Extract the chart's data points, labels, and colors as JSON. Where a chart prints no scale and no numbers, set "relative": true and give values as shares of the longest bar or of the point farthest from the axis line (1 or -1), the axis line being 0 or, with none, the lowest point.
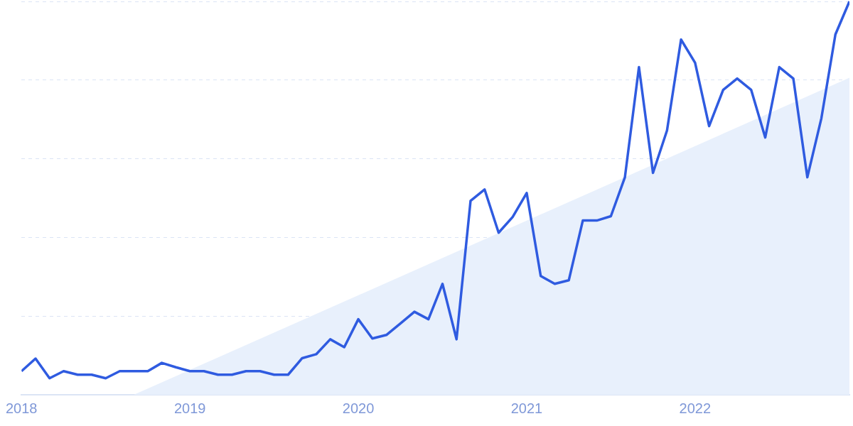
{
  "chart_data": {
    "type": "line",
    "relative": true,
    "grid": "y",
    "marker": "none",
    "line_style": "solid",
    "x": [
      "2018-01",
      "2018-02",
      "2018-03",
      "2018-04",
      "2018-05",
      "2018-06",
      "2018-07",
      "2018-08",
      "2018-09",
      "2018-10",
      "2018-11",
      "2018-12",
      "2019-01",
      "2019-02",
      "2019-03",
      "2019-04",
      "2019-05",
      "2019-06",
      "2019-07",
      "2019-08",
      "2019-09",
      "2019-10",
      "2019-11",
      "2019-12",
      "2020-01",
      "2020-02",
      "2020-03",
      "2020-04",
      "2020-05",
      "2020-06",
      "2020-07",
      "2020-08",
      "2020-09",
      "2020-10",
      "2020-11",
      "2020-12",
      "2021-01",
      "2021-02",
      "2021-03",
      "2021-04",
      "2021-05",
      "2021-06",
      "2021-07",
      "2021-08",
      "2021-09",
      "2021-10",
      "2021-11",
      "2021-12",
      "2022-01",
      "2022-02",
      "2022-03",
      "2022-04",
      "2022-05",
      "2022-06",
      "2022-07",
      "2022-08",
      "2022-09",
      "2022-10",
      "2022-11",
      "2022-12"
    ],
    "xlim": [
      "2018-01",
      "2022-12"
    ],
    "xticks": [
      {
        "value": "2018-01",
        "label": "2018"
      },
      {
        "value": "2019-01",
        "label": "2019"
      },
      {
        "value": "2020-01",
        "label": "2020"
      },
      {
        "value": "2021-01",
        "label": "2021"
      },
      {
        "value": "2022-01",
        "label": "2022"
      }
    ],
    "series": [
      {
        "type": "area",
        "color": "#e8f0fc",
        "x": [
          "2018-09",
          "2022-12"
        ],
        "values": [
          0,
          0.806
        ]
      },
      {
        "color": "#2f5be0",
        "values": [
          0.06,
          0.092,
          0.042,
          0.06,
          0.051,
          0.051,
          0.042,
          0.06,
          0.06,
          0.06,
          0.081,
          0.07,
          0.06,
          0.06,
          0.051,
          0.051,
          0.06,
          0.06,
          0.051,
          0.051,
          0.093,
          0.103,
          0.141,
          0.121,
          0.192,
          0.143,
          0.152,
          0.181,
          0.211,
          0.192,
          0.282,
          0.141,
          0.493,
          0.522,
          0.412,
          0.452,
          0.513,
          0.302,
          0.282,
          0.291,
          0.443,
          0.443,
          0.454,
          0.553,
          0.833,
          0.564,
          0.672,
          0.903,
          0.844,
          0.683,
          0.775,
          0.804,
          0.775,
          0.654,
          0.833,
          0.804,
          0.553,
          0.703,
          0.916,
          1
        ]
      }
    ],
    "legend": false
  }
}
